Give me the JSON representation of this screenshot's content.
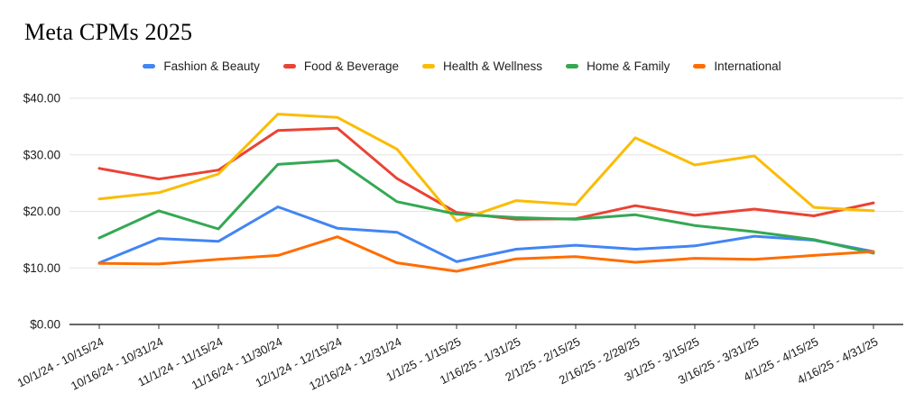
{
  "chart_data": {
    "type": "line",
    "title": "Meta CPMs 2025",
    "xlabel": "",
    "ylabel": "",
    "ylim": [
      0,
      40
    ],
    "grid": "horizontal",
    "legend_position": "top-center",
    "yticks": [
      {
        "label": "$0.00",
        "value": 0
      },
      {
        "label": "$10.00",
        "value": 10
      },
      {
        "label": "$20.00",
        "value": 20
      },
      {
        "label": "$30.00",
        "value": 30
      },
      {
        "label": "$40.00",
        "value": 40
      }
    ],
    "categories": [
      "10/1/24 - 10/15/24",
      "10/16/24 - 10/31/24",
      "11/1/24 - 11/15/24",
      "11/16/24 - 11/30/24",
      "12/1/24 - 12/15/24",
      "12/16/24 - 12/31/24",
      "1/1/25 - 1/15/25",
      "1/16/25 - 1/31/25",
      "2/1/25 - 2/15/25",
      "2/16/25 - 2/28/25",
      "3/1/25 - 3/15/25",
      "3/16/25 - 3/31/25",
      "4/1/25 - 4/15/25",
      "4/16/25 - 4/31/25"
    ],
    "series": [
      {
        "name": "Fashion & Beauty",
        "color": "#4285F4",
        "values": [
          10.9,
          15.2,
          14.7,
          20.8,
          17.0,
          16.3,
          11.1,
          13.3,
          14.0,
          13.3,
          13.9,
          15.6,
          14.9,
          12.9
        ]
      },
      {
        "name": "Food & Beverage",
        "color": "#EA4335",
        "values": [
          27.6,
          25.7,
          27.3,
          34.3,
          34.7,
          25.8,
          19.8,
          18.6,
          18.7,
          21.0,
          19.3,
          20.4,
          19.2,
          21.5
        ]
      },
      {
        "name": "Health & Wellness",
        "color": "#FBBC04",
        "values": [
          22.2,
          23.3,
          26.6,
          37.2,
          36.6,
          31.0,
          18.3,
          21.9,
          21.2,
          33.0,
          28.2,
          29.8,
          20.7,
          20.1
        ]
      },
      {
        "name": "Home & Family",
        "color": "#34A853",
        "values": [
          15.3,
          20.1,
          16.9,
          28.3,
          29.0,
          21.7,
          19.5,
          18.9,
          18.6,
          19.4,
          17.5,
          16.4,
          15.0,
          12.6
        ]
      },
      {
        "name": "International",
        "color": "#FF6D01",
        "values": [
          10.8,
          10.7,
          11.5,
          12.2,
          15.5,
          10.9,
          9.4,
          11.6,
          12.0,
          11.0,
          11.7,
          11.5,
          12.2,
          12.9
        ]
      }
    ],
    "axis_colors": {
      "gridline": "#e3e3e3",
      "baseline": "#333333",
      "tick_label": "#1a1a1a"
    }
  }
}
